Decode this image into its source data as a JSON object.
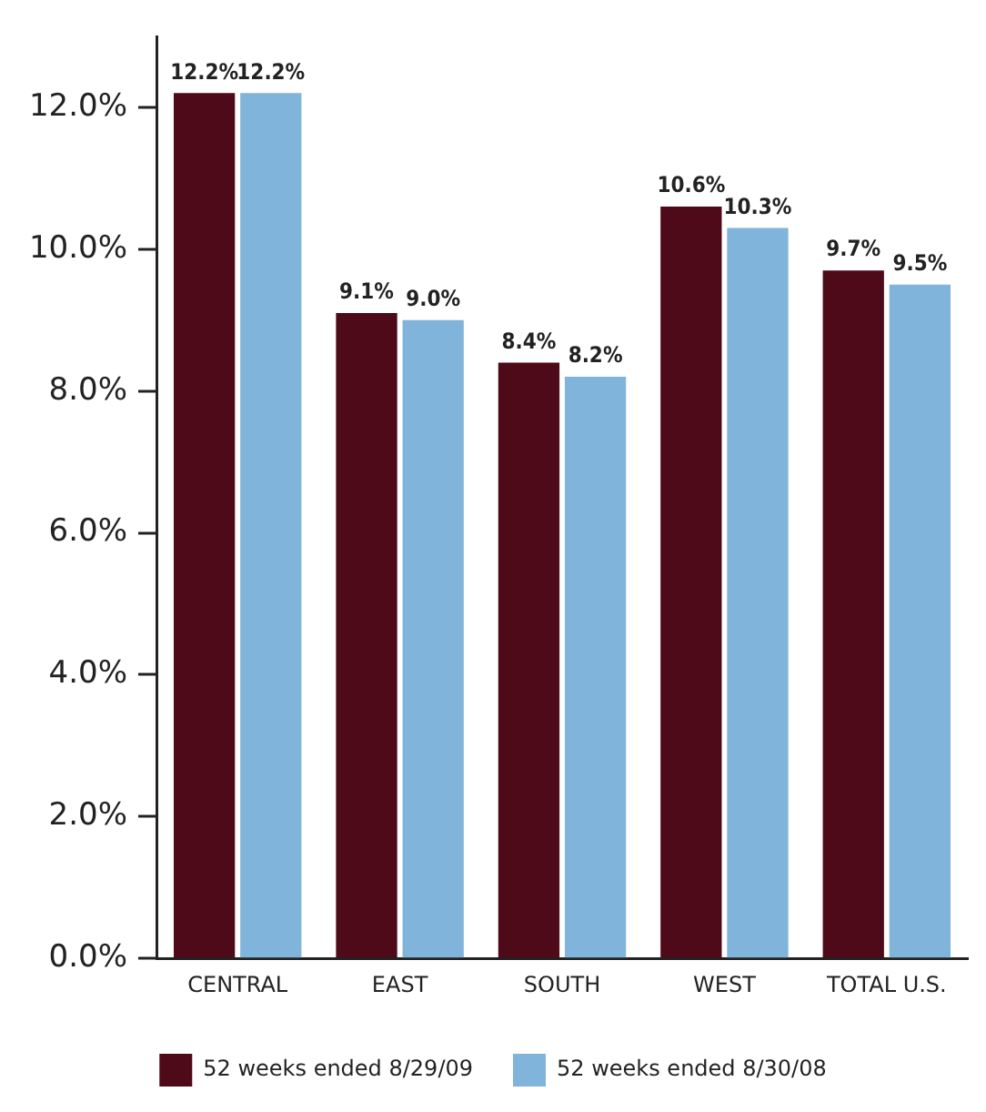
{
  "chart_data": {
    "type": "bar",
    "categories": [
      "CENTRAL",
      "EAST",
      "SOUTH",
      "WEST",
      "TOTAL U.S."
    ],
    "series": [
      {
        "name": "52 weeks ended 8/29/09",
        "color": "#4e0a19",
        "values": [
          12.2,
          9.1,
          8.4,
          10.6,
          9.7
        ],
        "value_labels": [
          "12.2%",
          "9.1%",
          "8.4%",
          "10.6%",
          "9.7%"
        ]
      },
      {
        "name": "52 weeks ended 8/30/08",
        "color": "#80b4da",
        "values": [
          12.2,
          9.0,
          8.2,
          10.3,
          9.5
        ],
        "value_labels": [
          "12.2%",
          "9.0%",
          "8.2%",
          "10.3%",
          "9.5%"
        ]
      }
    ],
    "ylim": [
      0,
      13
    ],
    "yticks": [
      {
        "value": 0,
        "label": "0.0%"
      },
      {
        "value": 2,
        "label": "2.0%"
      },
      {
        "value": 4,
        "label": "4.0%"
      },
      {
        "value": 6,
        "label": "6.0%"
      },
      {
        "value": 8,
        "label": "8.0%"
      },
      {
        "value": 10,
        "label": "10.0%"
      },
      {
        "value": 12,
        "label": "12.0%"
      }
    ],
    "grid": false,
    "legend": "bottom"
  }
}
